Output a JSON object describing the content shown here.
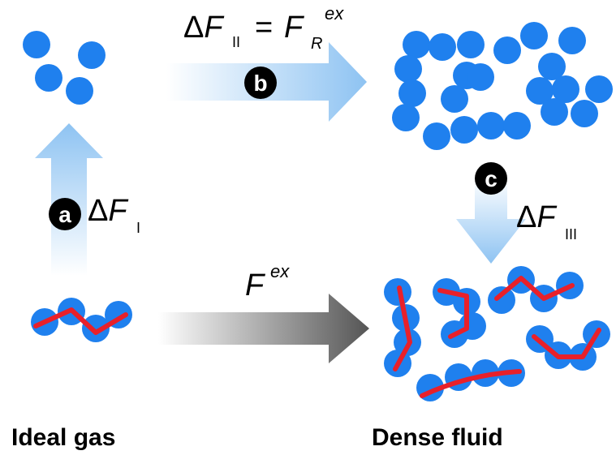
{
  "steps": {
    "a": {
      "badge": "a",
      "delta": "Δ",
      "symbol": "F",
      "sub": "I"
    },
    "b": {
      "badge": "b",
      "delta": "Δ",
      "symbol": "F",
      "sub": "II",
      "equals": "=",
      "rhs_symbol": "F",
      "rhs_sub": "R",
      "rhs_sup": "ex"
    },
    "c": {
      "badge": "c",
      "delta": "Δ",
      "symbol": "F",
      "sub": "III"
    }
  },
  "direct": {
    "symbol": "F",
    "sup": "ex"
  },
  "states": {
    "left": "Ideal gas",
    "right": "Dense fluid"
  },
  "colors": {
    "particle": "#1f80ee",
    "bond": "#e8202a",
    "arrow_blue": "#8ec3f2",
    "arrow_gray": "#555555",
    "badge": "#000000"
  }
}
